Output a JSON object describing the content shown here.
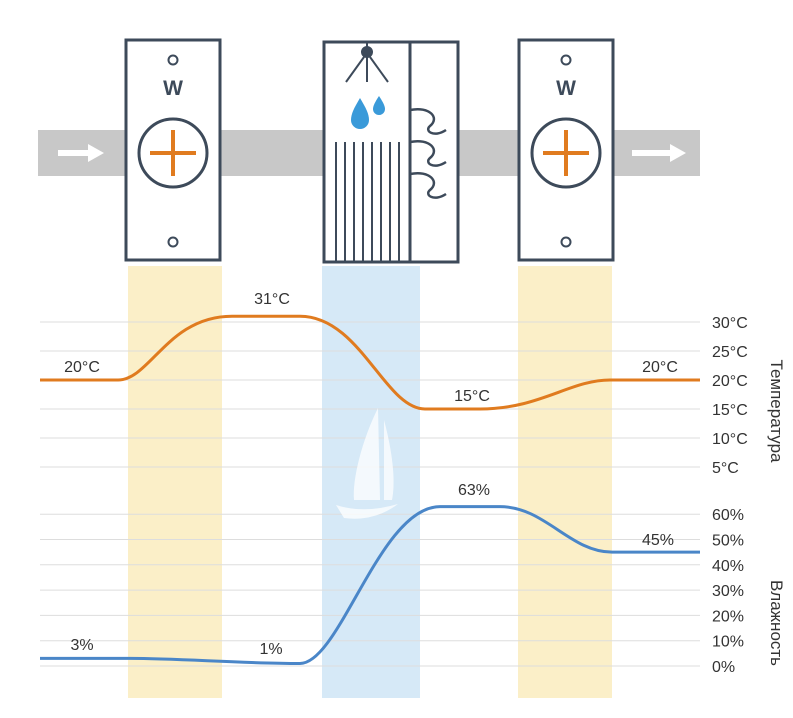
{
  "diagram": {
    "colors": {
      "duct": "#c8c8c8",
      "unit_stroke": "#3d4a5a",
      "heater_accent": "#e07b1f",
      "water": "#3a9ad9",
      "heater_band": "#fbefc8",
      "washer_band": "#d6e9f7",
      "temperature_line": "#e07b1f",
      "humidity_line": "#4a86c8",
      "text": "#333333"
    },
    "units": {
      "heater_1": {
        "label": "W",
        "icon": "plus-icon"
      },
      "washer": {
        "icons": [
          "shower-icon",
          "water-drops-icon",
          "wave-baffle-icon"
        ]
      },
      "heater_2": {
        "label": "W",
        "icon": "plus-icon"
      }
    },
    "icons": {
      "inlet": "arrow-right-icon",
      "outlet": "arrow-right-icon"
    },
    "temperature": {
      "axis_title": "Температура",
      "ticks": [
        "30°C",
        "25°C",
        "20°C",
        "15°C",
        "10°C",
        "5°C"
      ],
      "labels": {
        "start": "20°C",
        "peak": "31°C",
        "low": "15°C",
        "end": "20°C"
      }
    },
    "humidity": {
      "axis_title": "Влажность",
      "ticks": [
        "60%",
        "50%",
        "40%",
        "30%",
        "20%",
        "10%",
        "0%"
      ],
      "labels": {
        "start": "3%",
        "mid": "1%",
        "peak": "63%",
        "end": "45%"
      }
    }
  },
  "chart_data": [
    {
      "type": "line",
      "title": "",
      "xlabel": "",
      "ylabel": "Температура",
      "ylim": [
        5,
        30
      ],
      "y_ticks": [
        30,
        25,
        20,
        15,
        10,
        5
      ],
      "grid": true,
      "series": [
        {
          "values": [
            20,
            31,
            15,
            20
          ],
          "point_labels": [
            "20°C",
            "31°C",
            "15°C",
            "20°C"
          ]
        }
      ]
    },
    {
      "type": "line",
      "title": "",
      "xlabel": "",
      "ylabel": "Влажность",
      "ylim": [
        0,
        60
      ],
      "y_ticks": [
        60,
        50,
        40,
        30,
        20,
        10,
        0
      ],
      "grid": true,
      "series": [
        {
          "values": [
            3,
            1,
            63,
            45
          ],
          "point_labels": [
            "3%",
            "1%",
            "63%",
            "45%"
          ]
        }
      ]
    }
  ]
}
